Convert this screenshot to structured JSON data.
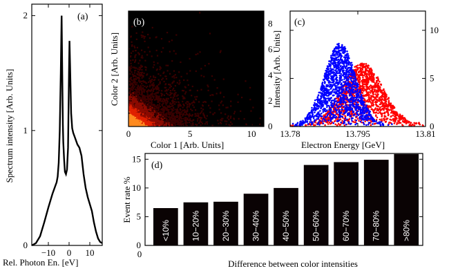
{
  "chart_data": [
    {
      "panel": "a",
      "type": "line",
      "panel_label": "(a)",
      "xlabel": "Rel. Photon En. [eV]",
      "ylabel": "Spectrum intensity [Arb. Units]",
      "xlim": [
        -18,
        16
      ],
      "ylim": [
        0,
        2.1
      ],
      "xticks": [
        "−10",
        "0",
        "10"
      ],
      "xtick_values": [
        -10,
        0,
        10
      ],
      "yticks": [
        "0",
        "1",
        "2"
      ],
      "ytick_values": [
        0,
        1,
        2
      ],
      "x": [
        -18,
        -16,
        -14,
        -12,
        -10,
        -8,
        -7,
        -6,
        -5.5,
        -5,
        -4.5,
        -4,
        -3.6,
        -3.2,
        -3,
        -2.8,
        -2.4,
        -2,
        -1.5,
        -1,
        -0.5,
        0,
        0.2,
        0.5,
        1,
        1.5,
        2,
        3,
        4,
        5,
        6,
        7,
        8,
        9,
        10,
        11,
        12,
        13,
        14,
        15,
        16
      ],
      "y": [
        0.0,
        0.02,
        0.08,
        0.2,
        0.33,
        0.45,
        0.5,
        0.55,
        0.6,
        0.72,
        1.0,
        1.5,
        2.0,
        1.35,
        1.05,
        0.9,
        0.75,
        0.64,
        0.62,
        0.66,
        0.85,
        1.55,
        1.78,
        1.55,
        1.15,
        1.02,
        0.98,
        0.93,
        0.88,
        0.85,
        0.78,
        0.62,
        0.5,
        0.42,
        0.36,
        0.3,
        0.2,
        0.12,
        0.06,
        0.03,
        0.02
      ]
    },
    {
      "panel": "b",
      "type": "heatmap",
      "panel_label": "(b)",
      "xlabel": "Color 1 [Arb. Units]",
      "ylabel": "Color 2 [Arb. Units]",
      "xlim": [
        0,
        11
      ],
      "ylim": [
        0,
        9
      ],
      "xticks": [
        "0",
        "5",
        "10"
      ],
      "xtick_values": [
        0,
        5,
        10
      ],
      "yticks": [
        "0",
        "2",
        "4",
        "6",
        "8"
      ],
      "ytick_values": [
        0,
        2,
        4,
        6,
        8
      ],
      "colormap": [
        "#000000",
        "#3a0000",
        "#8a0a00",
        "#e02000",
        "#ff8a20"
      ],
      "description_scale": "density concentrated near origin, decaying along both axes"
    },
    {
      "panel": "c",
      "type": "scatter",
      "panel_label": "(c)",
      "xlabel": "Electron Energy [GeV]",
      "ylabel": "Intensity [Arb. Units]",
      "xlim": [
        13.78,
        13.81
      ],
      "ylim": [
        0,
        12
      ],
      "xticks": [
        "13.78",
        "13.795",
        "13.81"
      ],
      "xtick_values": [
        13.78,
        13.795,
        13.81
      ],
      "yticks": [
        "0",
        "5",
        "10"
      ],
      "ytick_values": [
        0,
        5,
        10
      ],
      "series": [
        {
          "color": "#0000ff",
          "center": 13.791,
          "width": 0.0035,
          "peak": 8.5
        },
        {
          "color": "#ff0000",
          "center": 13.796,
          "width": 0.0045,
          "peak": 6.5
        }
      ]
    },
    {
      "panel": "d",
      "type": "bar",
      "panel_label": "(d)",
      "xlabel": "Difference between color intensities",
      "ylabel": "Event rate %",
      "ylim": [
        0,
        16
      ],
      "yticks": [
        "0",
        "5",
        "10",
        "15"
      ],
      "ytick_values": [
        0,
        5,
        10,
        15
      ],
      "xtick_zero": "0",
      "categories": [
        "<10%",
        "10−20%",
        "20−30%",
        "30−40%",
        "40−50%",
        "50−60%",
        "60−70%",
        "70−80%",
        ">80%"
      ],
      "values": [
        6.5,
        7.5,
        7.6,
        9.0,
        10.0,
        14.0,
        14.5,
        14.9,
        15.9
      ],
      "bar_color": "#0a0304"
    }
  ]
}
